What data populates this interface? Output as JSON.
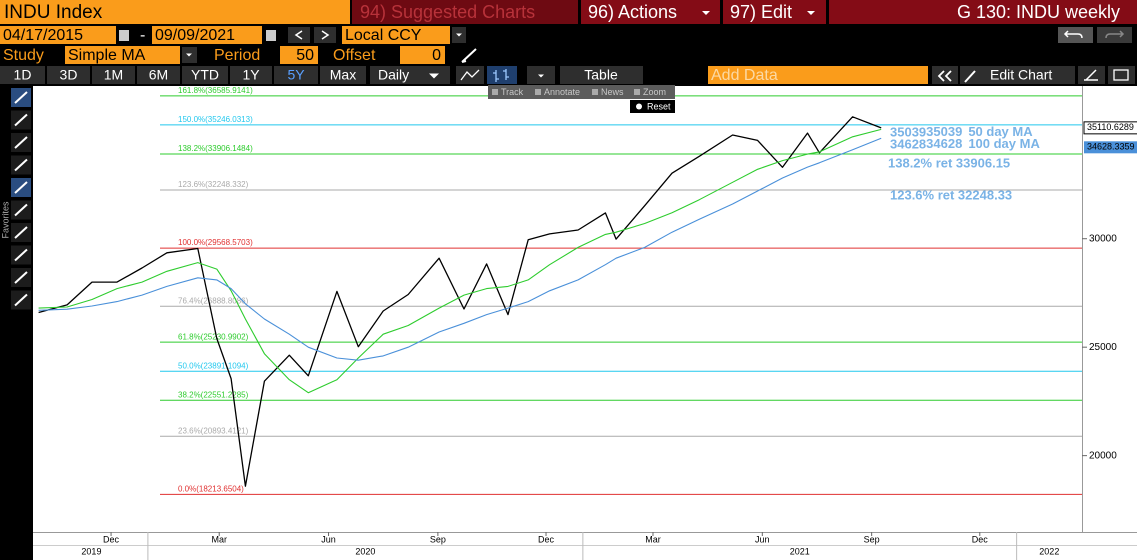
{
  "toolbar": {
    "suggested": "94) Suggested Charts",
    "actions": "96) Actions",
    "edit": "97) Edit",
    "page_title": "G 130: INDU weekly"
  },
  "range_bar": {
    "start": "04/17/2015",
    "separator": "-",
    "end": "09/09/2021",
    "currency": "Local CCY"
  },
  "study_bar": {
    "study_label": "Study",
    "study": "Simple MA",
    "period_label": "Period",
    "period": 50,
    "offset_label": "Offset",
    "offset": 0
  },
  "period_bar": {
    "ranges": [
      "1D",
      "3D",
      "1M",
      "6M",
      "YTD",
      "1Y",
      "5Y",
      "Max"
    ],
    "active": "5Y",
    "frequency": "Daily",
    "table": "Table",
    "add_data": "Add Data",
    "edit_chart": "Edit Chart"
  },
  "side_bar": {
    "favorites": "Favorites"
  },
  "chart_menu": {
    "items": [
      "Track",
      "Annotate",
      "News",
      "Zoom"
    ],
    "reset": "Reset"
  },
  "chart_data": {
    "type": "line",
    "x": [
      "2019-10-01",
      "2019-10-25",
      "2019-11-15",
      "2019-12-06",
      "2019-12-27",
      "2020-01-17",
      "2020-02-12",
      "2020-02-28",
      "2020-03-11",
      "2020-03-23",
      "2020-04-08",
      "2020-04-29",
      "2020-05-15",
      "2020-06-08",
      "2020-06-26",
      "2020-07-17",
      "2020-08-07",
      "2020-09-02",
      "2020-09-23",
      "2020-10-12",
      "2020-10-30",
      "2020-11-16",
      "2020-12-04",
      "2020-12-28",
      "2021-01-20",
      "2021-01-29",
      "2021-02-22",
      "2021-03-17",
      "2021-04-09",
      "2021-05-07",
      "2021-05-28",
      "2021-06-18",
      "2021-07-09",
      "2021-07-19",
      "2021-08-16",
      "2021-09-09"
    ],
    "xlim": [
      "2019-09-28",
      "2022-02-25"
    ],
    "xticks": [
      {
        "value": "2019-12-01",
        "label": "Dec"
      },
      {
        "value": "2020-03-01",
        "label": "Mar"
      },
      {
        "value": "2020-06-01",
        "label": "Jun"
      },
      {
        "value": "2020-09-01",
        "label": "Sep"
      },
      {
        "value": "2020-12-01",
        "label": "Dec"
      },
      {
        "value": "2021-03-01",
        "label": "Mar"
      },
      {
        "value": "2021-06-01",
        "label": "Jun"
      },
      {
        "value": "2021-09-01",
        "label": "Sep"
      },
      {
        "value": "2021-12-01",
        "label": "Dec"
      }
    ],
    "years": [
      "2019",
      "2020",
      "2021",
      "2022"
    ],
    "ylim": [
      16480,
      37040
    ],
    "yticks": [
      20000,
      25000,
      30000
    ],
    "series": [
      {
        "name": "INDU Index",
        "color": "#000000",
        "axis_label": "35110.6289",
        "values": [
          26600,
          26950,
          28000,
          28000,
          28650,
          29350,
          29550,
          25400,
          23550,
          18590,
          23430,
          24630,
          23680,
          27570,
          25020,
          26670,
          27430,
          29100,
          26760,
          28840,
          26500,
          29950,
          30220,
          30400,
          31190,
          29980,
          31520,
          33020,
          33800,
          34780,
          34530,
          33290,
          34870,
          33960,
          35620,
          35110.6289
        ]
      },
      {
        "name": "50 day MA",
        "color": "#2ecc2e",
        "note_label": "35039",
        "values": [
          26800,
          26850,
          27200,
          27700,
          28000,
          28500,
          28900,
          28600,
          27600,
          26300,
          24700,
          23500,
          22900,
          23500,
          24500,
          25600,
          26000,
          26800,
          27400,
          27700,
          27800,
          28100,
          28800,
          29600,
          30200,
          30300,
          30700,
          31200,
          31800,
          32600,
          33200,
          33600,
          33900,
          34000,
          34700,
          35039
        ]
      },
      {
        "name": "100 day MA",
        "color": "#4a90d9",
        "note_label": "34628",
        "axis_label": "34628.3359",
        "values": [
          26700,
          26750,
          26900,
          27100,
          27400,
          27800,
          28200,
          28100,
          27700,
          27000,
          26300,
          25600,
          25000,
          24500,
          24400,
          24600,
          25000,
          25700,
          26100,
          26500,
          26800,
          27100,
          27600,
          28100,
          28800,
          29100,
          29600,
          30300,
          30900,
          31600,
          32200,
          32800,
          33300,
          33500,
          34100,
          34628.3359
        ]
      }
    ],
    "levels": [
      {
        "label": "161.8%(36585.9141)",
        "value": 36585.9141,
        "color": "#2ecc2e"
      },
      {
        "label": "150.0%(35246.0313)",
        "value": 35246.0313,
        "color": "#22c8ee"
      },
      {
        "label": "138.2%(33906.1484)",
        "value": 33906.1484,
        "color": "#2ecc2e"
      },
      {
        "label": "123.6%(32248.332)",
        "value": 32248.332,
        "color": "#aaaaaa"
      },
      {
        "label": "100.0%(29568.5703)",
        "value": 29568.5703,
        "color": "#e03030"
      },
      {
        "label": "76.4%(26888.8086)",
        "value": 26888.8086,
        "color": "#aaaaaa"
      },
      {
        "label": "61.8%(25230.9902)",
        "value": 25230.9902,
        "color": "#2ecc2e"
      },
      {
        "label": "50.0%(23891.1094)",
        "value": 23891.1094,
        "color": "#22c8ee"
      },
      {
        "label": "38.2%(22551.2285)",
        "value": 22551.2285,
        "color": "#2ecc2e"
      },
      {
        "label": "23.6%(20893.4121)",
        "value": 20893.4121,
        "color": "#aaaaaa"
      },
      {
        "label": "0.0%(18213.6504)",
        "value": 18213.6504,
        "color": "#e03030"
      }
    ],
    "annotations": [
      {
        "text": "138.2% ret 33906.15",
        "value": 33906.15
      },
      {
        "text": "123.6% ret 32248.33",
        "value": 32248.33
      }
    ]
  }
}
